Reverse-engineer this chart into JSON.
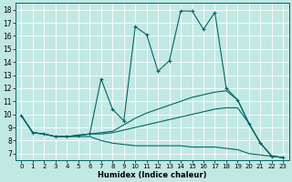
{
  "xlabel": "Humidex (Indice chaleur)",
  "ylabel": "",
  "xlim": [
    -0.5,
    23.5
  ],
  "ylim": [
    6.5,
    18.5
  ],
  "xticks": [
    0,
    1,
    2,
    3,
    4,
    5,
    6,
    7,
    8,
    9,
    10,
    11,
    12,
    13,
    14,
    15,
    16,
    17,
    18,
    19,
    20,
    21,
    22,
    23
  ],
  "yticks": [
    7,
    8,
    9,
    10,
    11,
    12,
    13,
    14,
    15,
    16,
    17,
    18
  ],
  "bg_color": "#c2e8e4",
  "grid_color": "#ffffff",
  "line_color": "#006666",
  "line1_x": [
    0,
    1,
    2,
    3,
    4,
    5,
    6,
    7,
    8,
    9,
    10,
    11,
    12,
    13,
    14,
    15,
    16,
    17,
    18,
    19,
    20,
    21,
    22,
    23
  ],
  "line1_y": [
    9.9,
    8.6,
    8.5,
    8.3,
    8.3,
    8.4,
    8.5,
    12.7,
    10.4,
    9.5,
    16.7,
    16.1,
    13.3,
    14.1,
    17.9,
    17.9,
    16.5,
    17.8,
    12.0,
    11.1,
    9.3,
    7.8,
    6.8,
    6.7
  ],
  "line2_x": [
    0,
    1,
    2,
    3,
    4,
    5,
    6,
    7,
    8,
    9,
    10,
    11,
    12,
    13,
    14,
    15,
    16,
    17,
    18,
    19,
    20,
    21,
    22,
    23
  ],
  "line2_y": [
    9.9,
    8.6,
    8.5,
    8.3,
    8.3,
    8.4,
    8.5,
    8.6,
    8.7,
    9.2,
    9.7,
    10.1,
    10.4,
    10.7,
    11.0,
    11.3,
    11.5,
    11.7,
    11.8,
    11.1,
    9.3,
    7.8,
    6.8,
    6.7
  ],
  "line3_x": [
    0,
    1,
    2,
    3,
    4,
    5,
    6,
    7,
    8,
    9,
    10,
    11,
    12,
    13,
    14,
    15,
    16,
    17,
    18,
    19,
    20,
    21,
    22,
    23
  ],
  "line3_y": [
    9.9,
    8.6,
    8.5,
    8.3,
    8.3,
    8.4,
    8.5,
    8.5,
    8.6,
    8.8,
    9.0,
    9.2,
    9.4,
    9.6,
    9.8,
    10.0,
    10.2,
    10.4,
    10.5,
    10.5,
    9.3,
    7.8,
    6.8,
    6.7
  ],
  "line4_x": [
    0,
    1,
    2,
    3,
    4,
    5,
    6,
    7,
    8,
    9,
    10,
    11,
    12,
    13,
    14,
    15,
    16,
    17,
    18,
    19,
    20,
    21,
    22,
    23
  ],
  "line4_y": [
    9.9,
    8.6,
    8.5,
    8.3,
    8.3,
    8.3,
    8.3,
    8.0,
    7.8,
    7.7,
    7.6,
    7.6,
    7.6,
    7.6,
    7.6,
    7.5,
    7.5,
    7.5,
    7.4,
    7.3,
    7.0,
    6.9,
    6.8,
    6.7
  ]
}
